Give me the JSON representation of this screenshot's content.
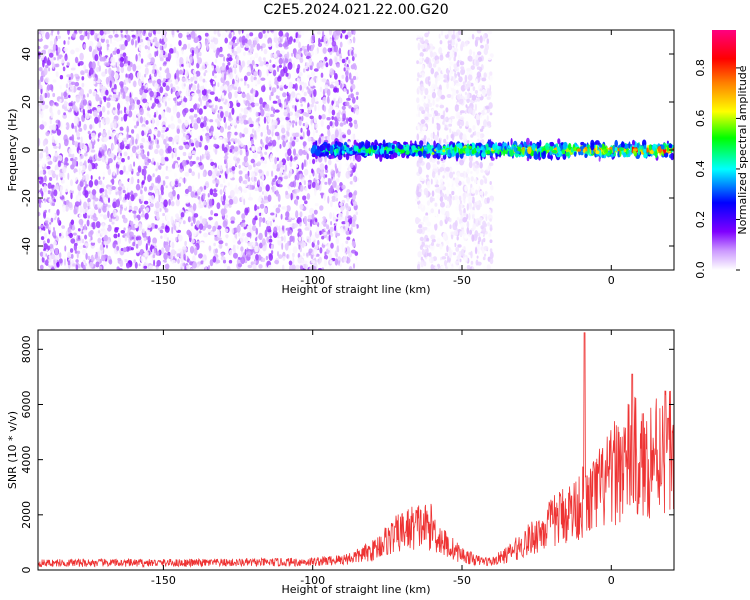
{
  "title": "C2E5.2024.021.22.00.G20",
  "chart_data": [
    {
      "type": "heatmap",
      "title": "",
      "xlabel": "Height of straight line (km)",
      "ylabel": "Frequency (Hz)",
      "xlim": [
        -192,
        21
      ],
      "ylim": [
        -50,
        50
      ],
      "xticks": [
        -150,
        -100,
        -50,
        0
      ],
      "yticks": [
        -40,
        -20,
        0,
        20,
        40
      ],
      "colorbar": {
        "label": "Normalized spectral amplitude",
        "range": [
          0.0,
          0.95
        ],
        "ticks": [
          0.0,
          0.2,
          0.4,
          0.6,
          0.8
        ],
        "colors": [
          "#ffffff",
          "#7f00ff",
          "#0000ff",
          "#00ffff",
          "#00ff00",
          "#ffff00",
          "#ff7f00",
          "#ff0000",
          "#ff00ff"
        ]
      },
      "regions": [
        {
          "x": [
            -192,
            -85
          ],
          "frequency": [
            -50,
            50
          ],
          "amplitude": [
            0.0,
            0.15
          ],
          "description": "broadband noise"
        },
        {
          "x": [
            -65,
            -40
          ],
          "frequency": [
            -50,
            50
          ],
          "amplitude": [
            0.0,
            0.05
          ]
        },
        {
          "x": [
            -100,
            21
          ],
          "frequency": [
            -4,
            4
          ],
          "amplitude": [
            0.1,
            0.95
          ],
          "description": "signal band near 0 Hz"
        }
      ]
    },
    {
      "type": "line",
      "title": "",
      "xlabel": "Height of straight line (km)",
      "ylabel": "SNR (10 * v/v)",
      "xlim": [
        -192,
        21
      ],
      "ylim": [
        0,
        8700
      ],
      "xticks": [
        -150,
        -100,
        -50,
        0
      ],
      "yticks": [
        0,
        2000,
        4000,
        6000,
        8000
      ],
      "color": "#ee3333",
      "x": [
        -192,
        -180,
        -170,
        -160,
        -150,
        -140,
        -130,
        -120,
        -110,
        -100,
        -95,
        -90,
        -85,
        -80,
        -75,
        -70,
        -65,
        -60,
        -58,
        -55,
        -50,
        -45,
        -40,
        -35,
        -30,
        -25,
        -20,
        -15,
        -12,
        -10,
        -8,
        -5,
        -2,
        0,
        2,
        5,
        8,
        10,
        12,
        15,
        18,
        21
      ],
      "y": [
        250,
        260,
        260,
        255,
        260,
        260,
        265,
        270,
        280,
        300,
        330,
        380,
        500,
        700,
        1100,
        1400,
        1600,
        1550,
        1200,
        900,
        550,
        350,
        300,
        550,
        900,
        1300,
        1700,
        2100,
        2200,
        2500,
        2400,
        2800,
        3100,
        3300,
        3700,
        3900,
        4100,
        3700,
        4000,
        4300,
        4500,
        4400
      ],
      "peaks": [
        {
          "x": -9,
          "y": 8600
        },
        {
          "x": 7,
          "y": 7100
        },
        {
          "x": 19,
          "y": 5500
        }
      ]
    }
  ]
}
